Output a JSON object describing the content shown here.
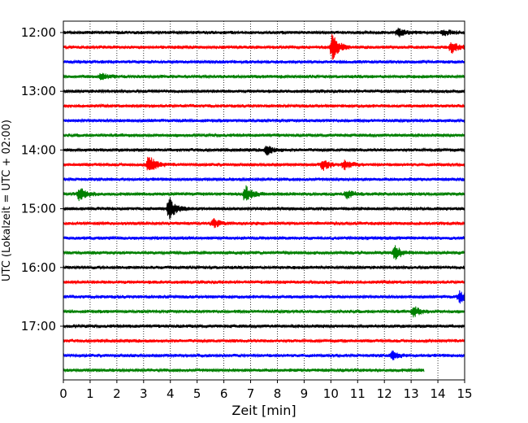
{
  "chart_data": {
    "type": "line",
    "title": "",
    "xlabel": "Zeit  [min]",
    "ylabel": "UTC (Lokalzeit = UTC + 02:00)",
    "xlim": [
      0,
      15
    ],
    "x_ticks": [
      0,
      1,
      2,
      3,
      4,
      5,
      6,
      7,
      8,
      9,
      10,
      11,
      12,
      13,
      14,
      15
    ],
    "x_tick_labels": [
      "0",
      "1",
      "2",
      "3",
      "4",
      "5",
      "6",
      "7",
      "8",
      "9",
      "10",
      "11",
      "12",
      "13",
      "14",
      "15"
    ],
    "y_tick_labels": [
      "12:00",
      "13:00",
      "14:00",
      "15:00",
      "16:00",
      "17:00"
    ],
    "vertical_grid": "dotted",
    "trace_minutes_per_line": 15,
    "line_colors": [
      "#000000",
      "#ff0000",
      "#0000ff",
      "#008000"
    ],
    "start_time": "12:00",
    "traces": [
      {
        "time": "12:00",
        "color": "#000000",
        "events": [
          {
            "min": 12.5,
            "amp": 0.35
          },
          {
            "min": 14.2,
            "amp": 0.25
          }
        ]
      },
      {
        "time": "12:15",
        "color": "#ff0000",
        "events": [
          {
            "min": 10.05,
            "amp": 1.0
          },
          {
            "min": 14.5,
            "amp": 0.45
          }
        ]
      },
      {
        "time": "12:30",
        "color": "#0000ff",
        "events": []
      },
      {
        "time": "12:45",
        "color": "#008000",
        "events": [
          {
            "min": 1.4,
            "amp": 0.25
          }
        ]
      },
      {
        "time": "13:00",
        "color": "#000000",
        "events": []
      },
      {
        "time": "13:15",
        "color": "#ff0000",
        "events": []
      },
      {
        "time": "13:30",
        "color": "#0000ff",
        "events": []
      },
      {
        "time": "13:45",
        "color": "#008000",
        "events": []
      },
      {
        "time": "14:00",
        "color": "#000000",
        "events": [
          {
            "min": 7.6,
            "amp": 0.35
          }
        ]
      },
      {
        "time": "14:15",
        "color": "#ff0000",
        "events": [
          {
            "min": 3.2,
            "amp": 0.75
          },
          {
            "min": 9.7,
            "amp": 0.4
          },
          {
            "min": 10.5,
            "amp": 0.4
          }
        ]
      },
      {
        "time": "14:30",
        "color": "#0000ff",
        "events": []
      },
      {
        "time": "14:45",
        "color": "#008000",
        "events": [
          {
            "min": 0.6,
            "amp": 0.55
          },
          {
            "min": 6.8,
            "amp": 0.7
          },
          {
            "min": 10.6,
            "amp": 0.3
          }
        ]
      },
      {
        "time": "15:00",
        "color": "#000000",
        "events": [
          {
            "min": 3.95,
            "amp": 0.9
          }
        ]
      },
      {
        "time": "15:15",
        "color": "#ff0000",
        "events": [
          {
            "min": 5.6,
            "amp": 0.35
          }
        ]
      },
      {
        "time": "15:30",
        "color": "#0000ff",
        "events": []
      },
      {
        "time": "15:45",
        "color": "#008000",
        "events": [
          {
            "min": 12.4,
            "amp": 0.55
          }
        ]
      },
      {
        "time": "16:00",
        "color": "#000000",
        "events": []
      },
      {
        "time": "16:15",
        "color": "#ff0000",
        "events": []
      },
      {
        "time": "16:30",
        "color": "#0000ff",
        "events": [
          {
            "min": 14.8,
            "amp": 0.45
          }
        ]
      },
      {
        "time": "16:45",
        "color": "#008000",
        "events": [
          {
            "min": 13.1,
            "amp": 0.4
          }
        ]
      },
      {
        "time": "17:00",
        "color": "#000000",
        "events": []
      },
      {
        "time": "17:15",
        "color": "#ff0000",
        "events": []
      },
      {
        "time": "17:30",
        "color": "#0000ff",
        "events": [
          {
            "min": 12.3,
            "amp": 0.3
          }
        ]
      },
      {
        "time": "17:45",
        "color": "#008000",
        "events": [],
        "end_min": 13.5
      }
    ]
  }
}
